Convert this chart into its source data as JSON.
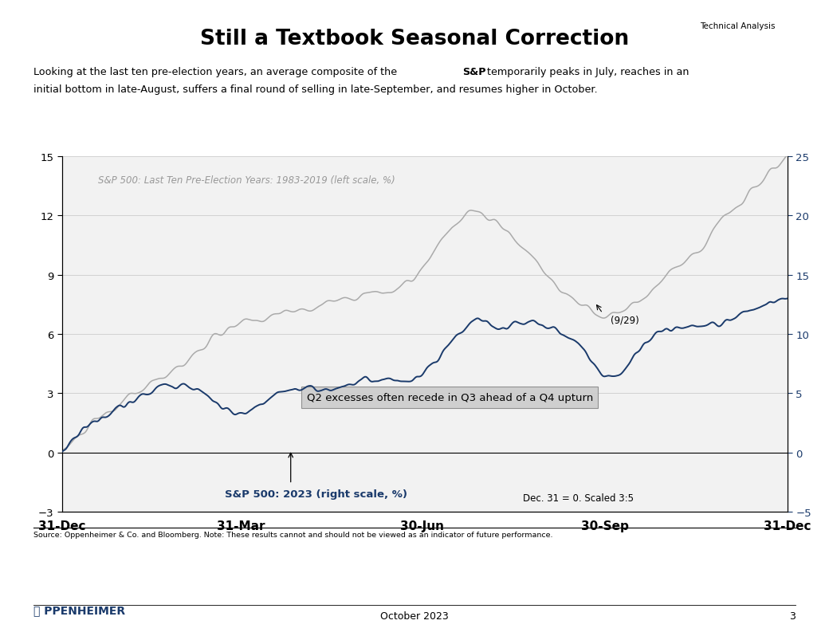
{
  "title": "Still a Textbook Seasonal Correction",
  "technical_analysis_label": "Technical Analysis",
  "left_label": "S&P 500: Last Ten Pre-Election Years: 1983-2019 (left scale, %)",
  "right_label": "S&P 500: 2023 (right scale, %)",
  "annotation_box": "Q2 excesses often recede in Q3 ahead of a Q4 upturn",
  "annotation_929": "(9/29)",
  "annotation_dec31": "Dec. 31 = 0. Scaled 3:5",
  "source_text": "Source: Oppenheimer & Co. and Bloomberg. Note: These results cannot and should not be viewed as an indicator of future performance.",
  "footer_date": "October 2023",
  "footer_page": "3",
  "left_ylim": [
    -3,
    15
  ],
  "right_ylim": [
    -5,
    25
  ],
  "left_yticks": [
    -3,
    0,
    3,
    6,
    9,
    12,
    15
  ],
  "right_yticks": [
    -5,
    0,
    5,
    10,
    15,
    20,
    25
  ],
  "xtick_labels": [
    "31-Dec",
    "31-Mar",
    "30-Jun",
    "30-Sep",
    "31-Dec"
  ],
  "xtick_positions": [
    0,
    90,
    181,
    273,
    365
  ],
  "color_historical": "#aaaaaa",
  "color_2023": "#1a3a6b",
  "bg_color": "#f2f2f2",
  "white": "#ffffff"
}
